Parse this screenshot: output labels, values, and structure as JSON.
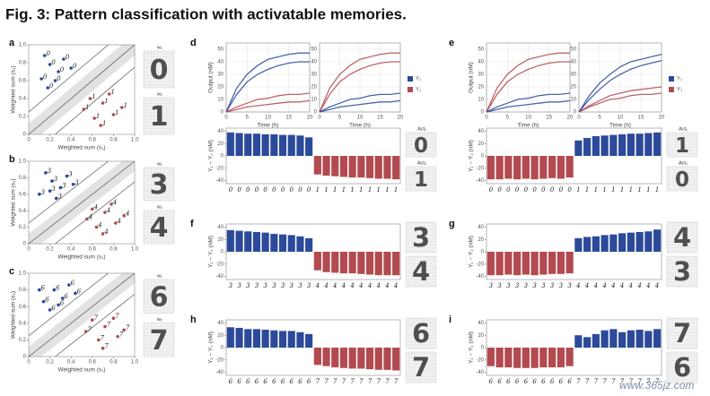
{
  "title": "Fig. 3: Pattern classification with activatable memories.",
  "watermark": "www.365jz.com",
  "chart_data": [
    {
      "type": "scatter",
      "panel": "a",
      "xlabel": "Weighted sum (s₁)",
      "ylabel": "Weighted sum (s₂)",
      "xlim": [
        0,
        1
      ],
      "ylim": [
        0,
        1
      ],
      "xticks": [
        0,
        0.2,
        0.4,
        0.6,
        0.8,
        {
          "value": 1,
          "label": "1.0"
        }
      ],
      "yticks": [
        0,
        0.2,
        0.4,
        0.6,
        0.8,
        {
          "value": 1,
          "label": "1.0"
        }
      ],
      "series": [
        {
          "label": "0",
          "color": "#2c4a9a",
          "x": [
            0.12,
            0.2,
            0.28,
            0.18,
            0.33,
            0.25,
            0.4,
            0.15
          ],
          "values": [
            0.62,
            0.78,
            0.7,
            0.52,
            0.84,
            0.6,
            0.74,
            0.88
          ]
        },
        {
          "label": "1",
          "color": "#b24a4f",
          "x": [
            0.52,
            0.62,
            0.7,
            0.58,
            0.8,
            0.68,
            0.76,
            0.88
          ],
          "values": [
            0.28,
            0.18,
            0.35,
            0.4,
            0.22,
            0.1,
            0.45,
            0.3
          ]
        }
      ],
      "side_images": [
        {
          "label": "w₁",
          "digit": "0",
          "color": "#2c4a9a"
        },
        {
          "label": "w₂",
          "digit": "1",
          "color": "#b24a4f"
        }
      ]
    },
    {
      "type": "scatter",
      "panel": "b",
      "xlabel": "Weighted sum (s₁)",
      "ylabel": "Weighted sum (s₂)",
      "xlim": [
        0,
        1
      ],
      "ylim": [
        0,
        1
      ],
      "xticks": [
        0,
        0.2,
        0.4,
        0.6,
        0.8,
        {
          "value": 1,
          "label": "1.0"
        }
      ],
      "yticks": [
        0,
        0.2,
        0.4,
        0.6,
        0.8,
        {
          "value": 1,
          "label": "1.0"
        }
      ],
      "series": [
        {
          "label": "3",
          "color": "#2c4a9a",
          "x": [
            0.1,
            0.22,
            0.3,
            0.16,
            0.36,
            0.26,
            0.42,
            0.2
          ],
          "values": [
            0.6,
            0.76,
            0.68,
            0.86,
            0.82,
            0.55,
            0.72,
            0.64
          ]
        },
        {
          "label": "4",
          "color": "#b24a4f",
          "x": [
            0.55,
            0.64,
            0.72,
            0.6,
            0.82,
            0.7,
            0.78,
            0.9
          ],
          "values": [
            0.3,
            0.2,
            0.38,
            0.42,
            0.25,
            0.12,
            0.48,
            0.34
          ]
        }
      ],
      "side_images": [
        {
          "label": "w₁",
          "digit": "3",
          "color": "#2c4a9a"
        },
        {
          "label": "w₂",
          "digit": "4",
          "color": "#b24a4f"
        }
      ]
    },
    {
      "type": "scatter",
      "panel": "c",
      "xlabel": "Weighted sum (s₁)",
      "ylabel": "Weighted sum (s₂)",
      "xlim": [
        0,
        1
      ],
      "ylim": [
        0,
        1
      ],
      "xticks": [
        0,
        0.2,
        0.4,
        0.6,
        0.8,
        {
          "value": 1,
          "label": "1.0"
        }
      ],
      "yticks": [
        0,
        0.2,
        0.4,
        0.6,
        0.8,
        {
          "value": 1,
          "label": "1.0"
        }
      ],
      "series": [
        {
          "label": "6",
          "color": "#2c4a9a",
          "x": [
            0.14,
            0.24,
            0.32,
            0.2,
            0.38,
            0.28,
            0.44,
            0.1
          ],
          "values": [
            0.66,
            0.8,
            0.7,
            0.56,
            0.86,
            0.62,
            0.76,
            0.8
          ]
        },
        {
          "label": "7",
          "color": "#b24a4f",
          "x": [
            0.54,
            0.66,
            0.72,
            0.6,
            0.84,
            0.7,
            0.8,
            0.9
          ],
          "values": [
            0.3,
            0.2,
            0.36,
            0.44,
            0.24,
            0.1,
            0.46,
            0.32
          ]
        }
      ],
      "side_images": [
        {
          "label": "w₁",
          "digit": "6",
          "color": "#2c4a9a"
        },
        {
          "label": "w₂",
          "digit": "7",
          "color": "#b24a4f"
        }
      ]
    },
    {
      "type": "line",
      "panel": "d",
      "xlabel": "Time (h)",
      "ylabel": "Output (nM)",
      "grid": true,
      "xlim": [
        0,
        20
      ],
      "ylim": [
        0,
        55
      ],
      "xticks": [
        0,
        5,
        10,
        15,
        20
      ],
      "yticks": [
        0,
        10,
        20,
        30,
        40,
        50
      ],
      "x": [
        0,
        2.5,
        5,
        7.5,
        10,
        12.5,
        15,
        17.5,
        20
      ],
      "series": [
        {
          "color": "#2c4a9a",
          "values": [
            0,
            19,
            30,
            37,
            42,
            44,
            46,
            47,
            47
          ]
        },
        {
          "color": "#2c4a9a",
          "values": [
            0,
            14,
            24,
            30,
            34,
            37,
            39,
            40,
            40
          ]
        },
        {
          "color": "#b24a4f",
          "values": [
            0,
            4,
            7,
            10,
            11,
            13,
            14,
            14,
            15
          ]
        },
        {
          "color": "#b24a4f",
          "values": [
            0,
            2,
            4,
            5,
            6,
            7,
            8,
            8,
            9
          ]
        }
      ]
    },
    {
      "type": "line",
      "xlabel": "Time (h)",
      "grid": true,
      "xlim": [
        0,
        20
      ],
      "ylim": [
        0,
        55
      ],
      "xticks": [
        0,
        5,
        10,
        15,
        20
      ],
      "yticks": [
        0,
        10,
        20,
        30,
        40,
        50
      ],
      "x": [
        0,
        2.5,
        5,
        7.5,
        10,
        12.5,
        15,
        17.5,
        20
      ],
      "series": [
        {
          "color": "#b24a4f",
          "values": [
            0,
            19,
            30,
            37,
            42,
            44,
            46,
            47,
            47
          ]
        },
        {
          "color": "#b24a4f",
          "values": [
            0,
            14,
            24,
            30,
            34,
            37,
            39,
            40,
            40
          ]
        },
        {
          "color": "#2c4a9a",
          "values": [
            0,
            4,
            7,
            10,
            11,
            13,
            14,
            14,
            15
          ]
        },
        {
          "color": "#2c4a9a",
          "values": [
            0,
            2,
            4,
            5,
            6,
            7,
            8,
            8,
            9
          ]
        }
      ],
      "legend": [
        {
          "label": "Y₁",
          "color": "#2c4a9a"
        },
        {
          "label": "Y₂",
          "color": "#b24a4f"
        }
      ]
    },
    {
      "type": "bar",
      "ylabel": "Y₁ − Y₂ (nM)",
      "ylim": [
        -45,
        45
      ],
      "yticks": [
        -40,
        -20,
        0,
        20,
        40
      ],
      "colors": {
        "positive": "#2c4a9a",
        "negative": "#b24a4f"
      },
      "categories": [
        "0",
        "0",
        "0",
        "0",
        "0",
        "0",
        "0",
        "0",
        "0",
        "0",
        "1",
        "1",
        "1",
        "1",
        "1",
        "1",
        "1",
        "1",
        "1",
        "1"
      ],
      "values": [
        38,
        37,
        36,
        36,
        35,
        35,
        34,
        34,
        33,
        30,
        -30,
        -32,
        -33,
        -34,
        -35,
        -35,
        -36,
        -37,
        -37,
        -38
      ],
      "side_images": [
        {
          "label": "Act₁",
          "digit": "0",
          "color": "#2c4a9a"
        },
        {
          "label": "Act₂",
          "digit": "1",
          "color": "#b24a4f"
        }
      ]
    },
    {
      "type": "line",
      "panel": "e",
      "xlabel": "Time (h)",
      "ylabel": "Output (nM)",
      "grid": true,
      "xlim": [
        0,
        20
      ],
      "ylim": [
        0,
        55
      ],
      "xticks": [
        0,
        5,
        10,
        15,
        20
      ],
      "yticks": [
        0,
        10,
        20,
        30,
        40,
        50
      ],
      "x": [
        0,
        2.5,
        5,
        7.5,
        10,
        12.5,
        15,
        17.5,
        20
      ],
      "series": [
        {
          "color": "#b24a4f",
          "values": [
            0,
            19,
            30,
            37,
            42,
            44,
            46,
            47,
            47
          ]
        },
        {
          "color": "#b24a4f",
          "values": [
            0,
            14,
            24,
            30,
            34,
            37,
            39,
            40,
            40
          ]
        },
        {
          "color": "#2c4a9a",
          "values": [
            0,
            4,
            7,
            10,
            11,
            13,
            14,
            14,
            15
          ]
        },
        {
          "color": "#2c4a9a",
          "values": [
            0,
            2,
            4,
            5,
            6,
            7,
            8,
            8,
            9
          ]
        }
      ]
    },
    {
      "type": "line",
      "xlabel": "Time (h)",
      "grid": true,
      "xlim": [
        0,
        20
      ],
      "ylim": [
        0,
        55
      ],
      "xticks": [
        0,
        5,
        10,
        15,
        20
      ],
      "yticks": [
        0,
        10,
        20,
        30,
        40,
        50
      ],
      "x": [
        0,
        2.5,
        5,
        7.5,
        10,
        12.5,
        15,
        17.5,
        20
      ],
      "series": [
        {
          "color": "#2c4a9a",
          "values": [
            0,
            13,
            23,
            30,
            36,
            40,
            42,
            44,
            46
          ]
        },
        {
          "color": "#2c4a9a",
          "values": [
            0,
            10,
            18,
            25,
            30,
            34,
            37,
            39,
            41
          ]
        },
        {
          "color": "#b24a4f",
          "values": [
            0,
            4,
            7,
            10,
            11,
            13,
            14,
            14,
            15
          ]
        },
        {
          "color": "#b24a4f",
          "values": [
            0,
            5,
            9,
            13,
            15,
            17,
            18,
            19,
            20
          ]
        }
      ],
      "legend": [
        {
          "label": "Y₁",
          "color": "#2c4a9a"
        },
        {
          "label": "Y₂",
          "color": "#b24a4f"
        }
      ]
    },
    {
      "type": "bar",
      "ylabel": "Y₁ − Y₂ (nM)",
      "ylim": [
        -45,
        45
      ],
      "yticks": [
        -40,
        -20,
        0,
        20,
        40
      ],
      "colors": {
        "positive": "#2c4a9a",
        "negative": "#b24a4f"
      },
      "categories": [
        "0",
        "0",
        "0",
        "0",
        "0",
        "0",
        "0",
        "0",
        "0",
        "0",
        "1",
        "1",
        "1",
        "1",
        "1",
        "1",
        "1",
        "1",
        "1",
        "1"
      ],
      "values": [
        -38,
        -38,
        -37,
        -38,
        -37,
        -38,
        -37,
        -36,
        -37,
        -35,
        25,
        29,
        32,
        33,
        34,
        35,
        36,
        36,
        37,
        38
      ],
      "side_images": [
        {
          "label": "Act₁",
          "digit": "1",
          "color": "#2c4a9a"
        },
        {
          "label": "Act₂",
          "digit": "0",
          "color": "#b24a4f"
        }
      ]
    },
    {
      "type": "bar",
      "panel": "f",
      "ylabel": "Y₁ − Y₂ (nM)",
      "ylim": [
        -45,
        45
      ],
      "yticks": [
        -40,
        -20,
        0,
        20,
        40
      ],
      "colors": {
        "positive": "#2c4a9a",
        "negative": "#b24a4f"
      },
      "categories": [
        "3",
        "3",
        "3",
        "3",
        "3",
        "3",
        "3",
        "3",
        "3",
        "3",
        "4",
        "4",
        "4",
        "4",
        "4",
        "4",
        "4",
        "4",
        "4",
        "4"
      ],
      "values": [
        35,
        34,
        33,
        32,
        31,
        29,
        28,
        27,
        25,
        22,
        -30,
        -33,
        -34,
        -35,
        -35,
        -36,
        -37,
        -38,
        -38,
        -38
      ],
      "side_images": [
        {
          "digit": "3",
          "color": "#2c4a9a"
        },
        {
          "digit": "4",
          "color": "#b24a4f"
        }
      ]
    },
    {
      "type": "bar",
      "panel": "g",
      "ylabel": "Y₁ − Y₂ (nM)",
      "ylim": [
        -45,
        45
      ],
      "yticks": [
        -40,
        -20,
        0,
        20,
        40
      ],
      "colors": {
        "positive": "#2c4a9a",
        "negative": "#b24a4f"
      },
      "categories": [
        "3",
        "3",
        "3",
        "3",
        "3",
        "3",
        "3",
        "3",
        "3",
        "3",
        "4",
        "4",
        "4",
        "4",
        "4",
        "4",
        "4",
        "4",
        "4",
        "4"
      ],
      "values": [
        -38,
        -38,
        -37,
        -38,
        -37,
        -38,
        -37,
        -36,
        -36,
        -35,
        22,
        24,
        25,
        27,
        28,
        30,
        31,
        32,
        33,
        36
      ],
      "side_images": [
        {
          "digit": "4",
          "color": "#2c4a9a"
        },
        {
          "digit": "3",
          "color": "#b24a4f"
        }
      ]
    },
    {
      "type": "bar",
      "panel": "h",
      "ylabel": "Y₁ − Y₂ (nM)",
      "ylim": [
        -45,
        45
      ],
      "yticks": [
        -40,
        -20,
        0,
        20,
        40
      ],
      "colors": {
        "positive": "#2c4a9a",
        "negative": "#b24a4f"
      },
      "categories": [
        "6",
        "6",
        "6",
        "6",
        "6",
        "6",
        "6",
        "6",
        "6",
        "6",
        "7",
        "7",
        "7",
        "7",
        "7",
        "7",
        "7",
        "7",
        "7",
        "7"
      ],
      "values": [
        33,
        32,
        30,
        30,
        29,
        28,
        27,
        27,
        25,
        22,
        -28,
        -30,
        -32,
        -33,
        -34,
        -34,
        -35,
        -36,
        -36,
        -37
      ],
      "side_images": [
        {
          "digit": "6",
          "color": "#2c4a9a"
        },
        {
          "digit": "7",
          "color": "#b24a4f"
        }
      ]
    },
    {
      "type": "bar",
      "panel": "i",
      "ylabel": "Y₁ − Y₂ (nM)",
      "ylim": [
        -45,
        45
      ],
      "yticks": [
        -40,
        -20,
        0,
        20,
        40
      ],
      "colors": {
        "positive": "#2c4a9a",
        "negative": "#b24a4f"
      },
      "categories": [
        "6",
        "6",
        "6",
        "6",
        "6",
        "6",
        "6",
        "6",
        "6",
        "6",
        "7",
        "7",
        "7",
        "7",
        "7",
        "7",
        "7",
        "7",
        "7",
        "7"
      ],
      "values": [
        -30,
        -32,
        -32,
        -33,
        -33,
        -33,
        -32,
        -32,
        -32,
        -30,
        20,
        17,
        22,
        28,
        30,
        25,
        28,
        29,
        27,
        30
      ],
      "side_images": [
        {
          "digit": "7",
          "color": "#2c4a9a"
        },
        {
          "digit": "6",
          "color": "#b24a4f"
        }
      ]
    }
  ]
}
